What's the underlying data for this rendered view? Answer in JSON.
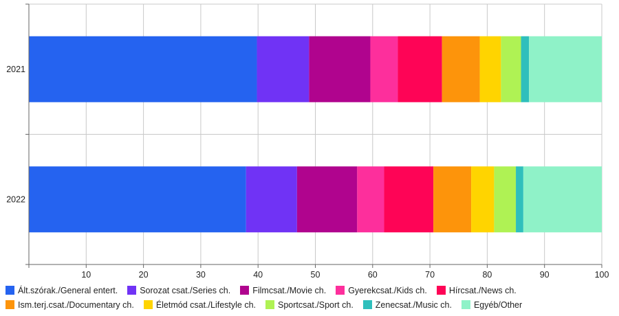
{
  "chart_data": {
    "type": "bar",
    "orientation": "horizontal",
    "stacked": true,
    "categories": [
      "2021",
      "2022"
    ],
    "xlim": [
      0,
      100
    ],
    "xticks": [
      10,
      20,
      30,
      40,
      50,
      60,
      70,
      80,
      90,
      100
    ],
    "grid": true,
    "legend_position": "bottom",
    "series": [
      {
        "name": "Ált.szórak./General entert.",
        "color": "#2563f0",
        "values": [
          39.8,
          37.9
        ]
      },
      {
        "name": "Sorozat csat./Series ch.",
        "color": "#7033f5",
        "values": [
          9.1,
          8.9
        ]
      },
      {
        "name": "Filmcsat./Movie ch.",
        "color": "#b0048e",
        "values": [
          10.7,
          10.5
        ]
      },
      {
        "name": "Gyerekcsat./Kids ch.",
        "color": "#fd2f9c",
        "values": [
          4.8,
          4.7
        ]
      },
      {
        "name": "Hírcsat./News ch.",
        "color": "#fe0456",
        "values": [
          7.7,
          8.6
        ]
      },
      {
        "name": "Ism.terj.csat./Documentary ch.",
        "color": "#fd940b",
        "values": [
          6.6,
          6.6
        ]
      },
      {
        "name": "Életmód csat./Lifestyle ch.",
        "color": "#ffd400",
        "values": [
          3.7,
          4.0
        ]
      },
      {
        "name": "Sportcsat./Sport ch.",
        "color": "#aff254",
        "values": [
          3.5,
          3.8
        ]
      },
      {
        "name": "Zenecsat./Music ch.",
        "color": "#2fbfbc",
        "values": [
          1.4,
          1.3
        ]
      },
      {
        "name": "Egyéb/Other",
        "color": "#8ff2c8",
        "values": [
          12.7,
          13.7
        ]
      }
    ]
  }
}
